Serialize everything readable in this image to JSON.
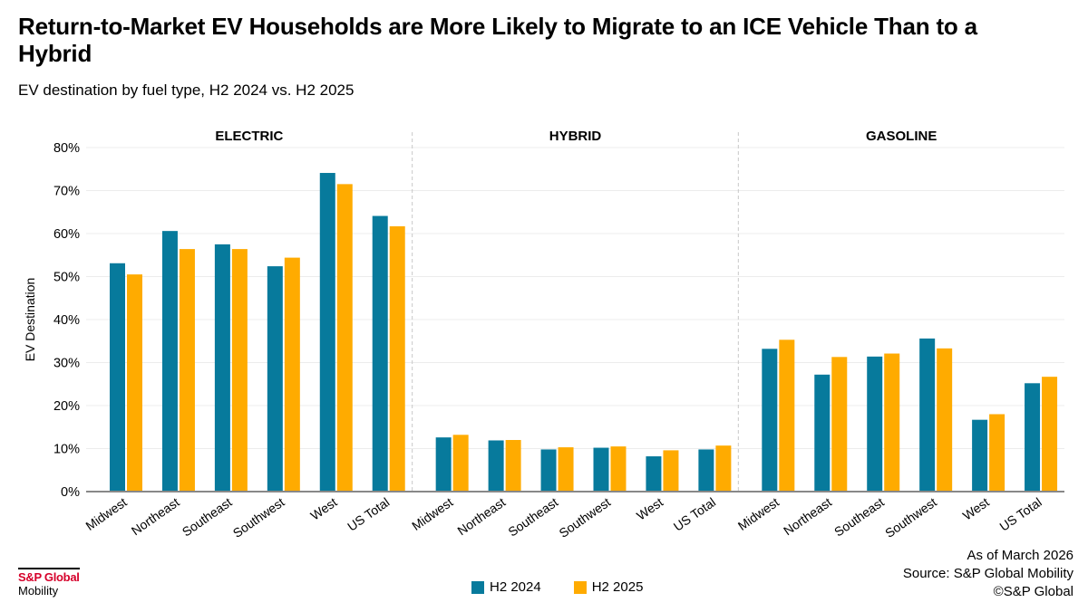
{
  "header": {
    "title": "Return-to-Market EV Households are More Likely to Migrate to an ICE Vehicle Than to a Hybrid",
    "subtitle": "EV destination by fuel type, H2 2024 vs. H2 2025"
  },
  "colors": {
    "h2_2024": "#077a9c",
    "h2_2025": "#ffab00",
    "grid": "#ececec",
    "axis": "#888888",
    "divider": "#c8c8c8",
    "brand": "#d6002a"
  },
  "chart_data": {
    "type": "bar",
    "title": "Return-to-Market EV Households are More Likely to Migrate to an ICE Vehicle Than to a Hybrid",
    "subtitle": "EV destination by fuel type, H2 2024 vs. H2 2025",
    "xlabel": "",
    "ylabel": "EV Destination",
    "ylim": [
      0,
      80
    ],
    "yticks": [
      0,
      10,
      20,
      30,
      40,
      50,
      60,
      70,
      80
    ],
    "ytick_labels": [
      "0%",
      "10%",
      "20%",
      "30%",
      "40%",
      "50%",
      "60%",
      "70%",
      "80%"
    ],
    "grid": true,
    "legend_position": "bottom-center",
    "categories": [
      "Midwest",
      "Northeast",
      "Southeast",
      "Southwest",
      "West",
      "US Total"
    ],
    "series_names": [
      "H2 2024",
      "H2 2025"
    ],
    "panels": [
      {
        "name": "ELECTRIC",
        "series": [
          {
            "name": "H2 2024",
            "values": [
              53.1,
              60.6,
              57.5,
              52.4,
              74.1,
              64.1
            ]
          },
          {
            "name": "H2 2025",
            "values": [
              50.5,
              56.4,
              56.4,
              54.4,
              71.5,
              61.7
            ]
          }
        ]
      },
      {
        "name": "HYBRID",
        "series": [
          {
            "name": "H2 2024",
            "values": [
              12.6,
              11.9,
              9.8,
              10.2,
              8.2,
              9.8
            ]
          },
          {
            "name": "H2 2025",
            "values": [
              13.2,
              12.0,
              10.3,
              10.5,
              9.6,
              10.7
            ]
          }
        ]
      },
      {
        "name": "GASOLINE",
        "series": [
          {
            "name": "H2 2024",
            "values": [
              33.2,
              27.2,
              31.4,
              35.6,
              16.7,
              25.2
            ]
          },
          {
            "name": "H2 2025",
            "values": [
              35.3,
              31.3,
              32.1,
              33.3,
              18.0,
              26.7
            ]
          }
        ]
      }
    ]
  },
  "legend": {
    "items": [
      {
        "label": "H2 2024"
      },
      {
        "label": "H2 2025"
      }
    ]
  },
  "footer": {
    "logo_brand": "S&P Global",
    "logo_sub": "Mobility",
    "source_lines": [
      "As of March 2026",
      "Source: S&P Global Mobility",
      "©S&P Global"
    ]
  }
}
